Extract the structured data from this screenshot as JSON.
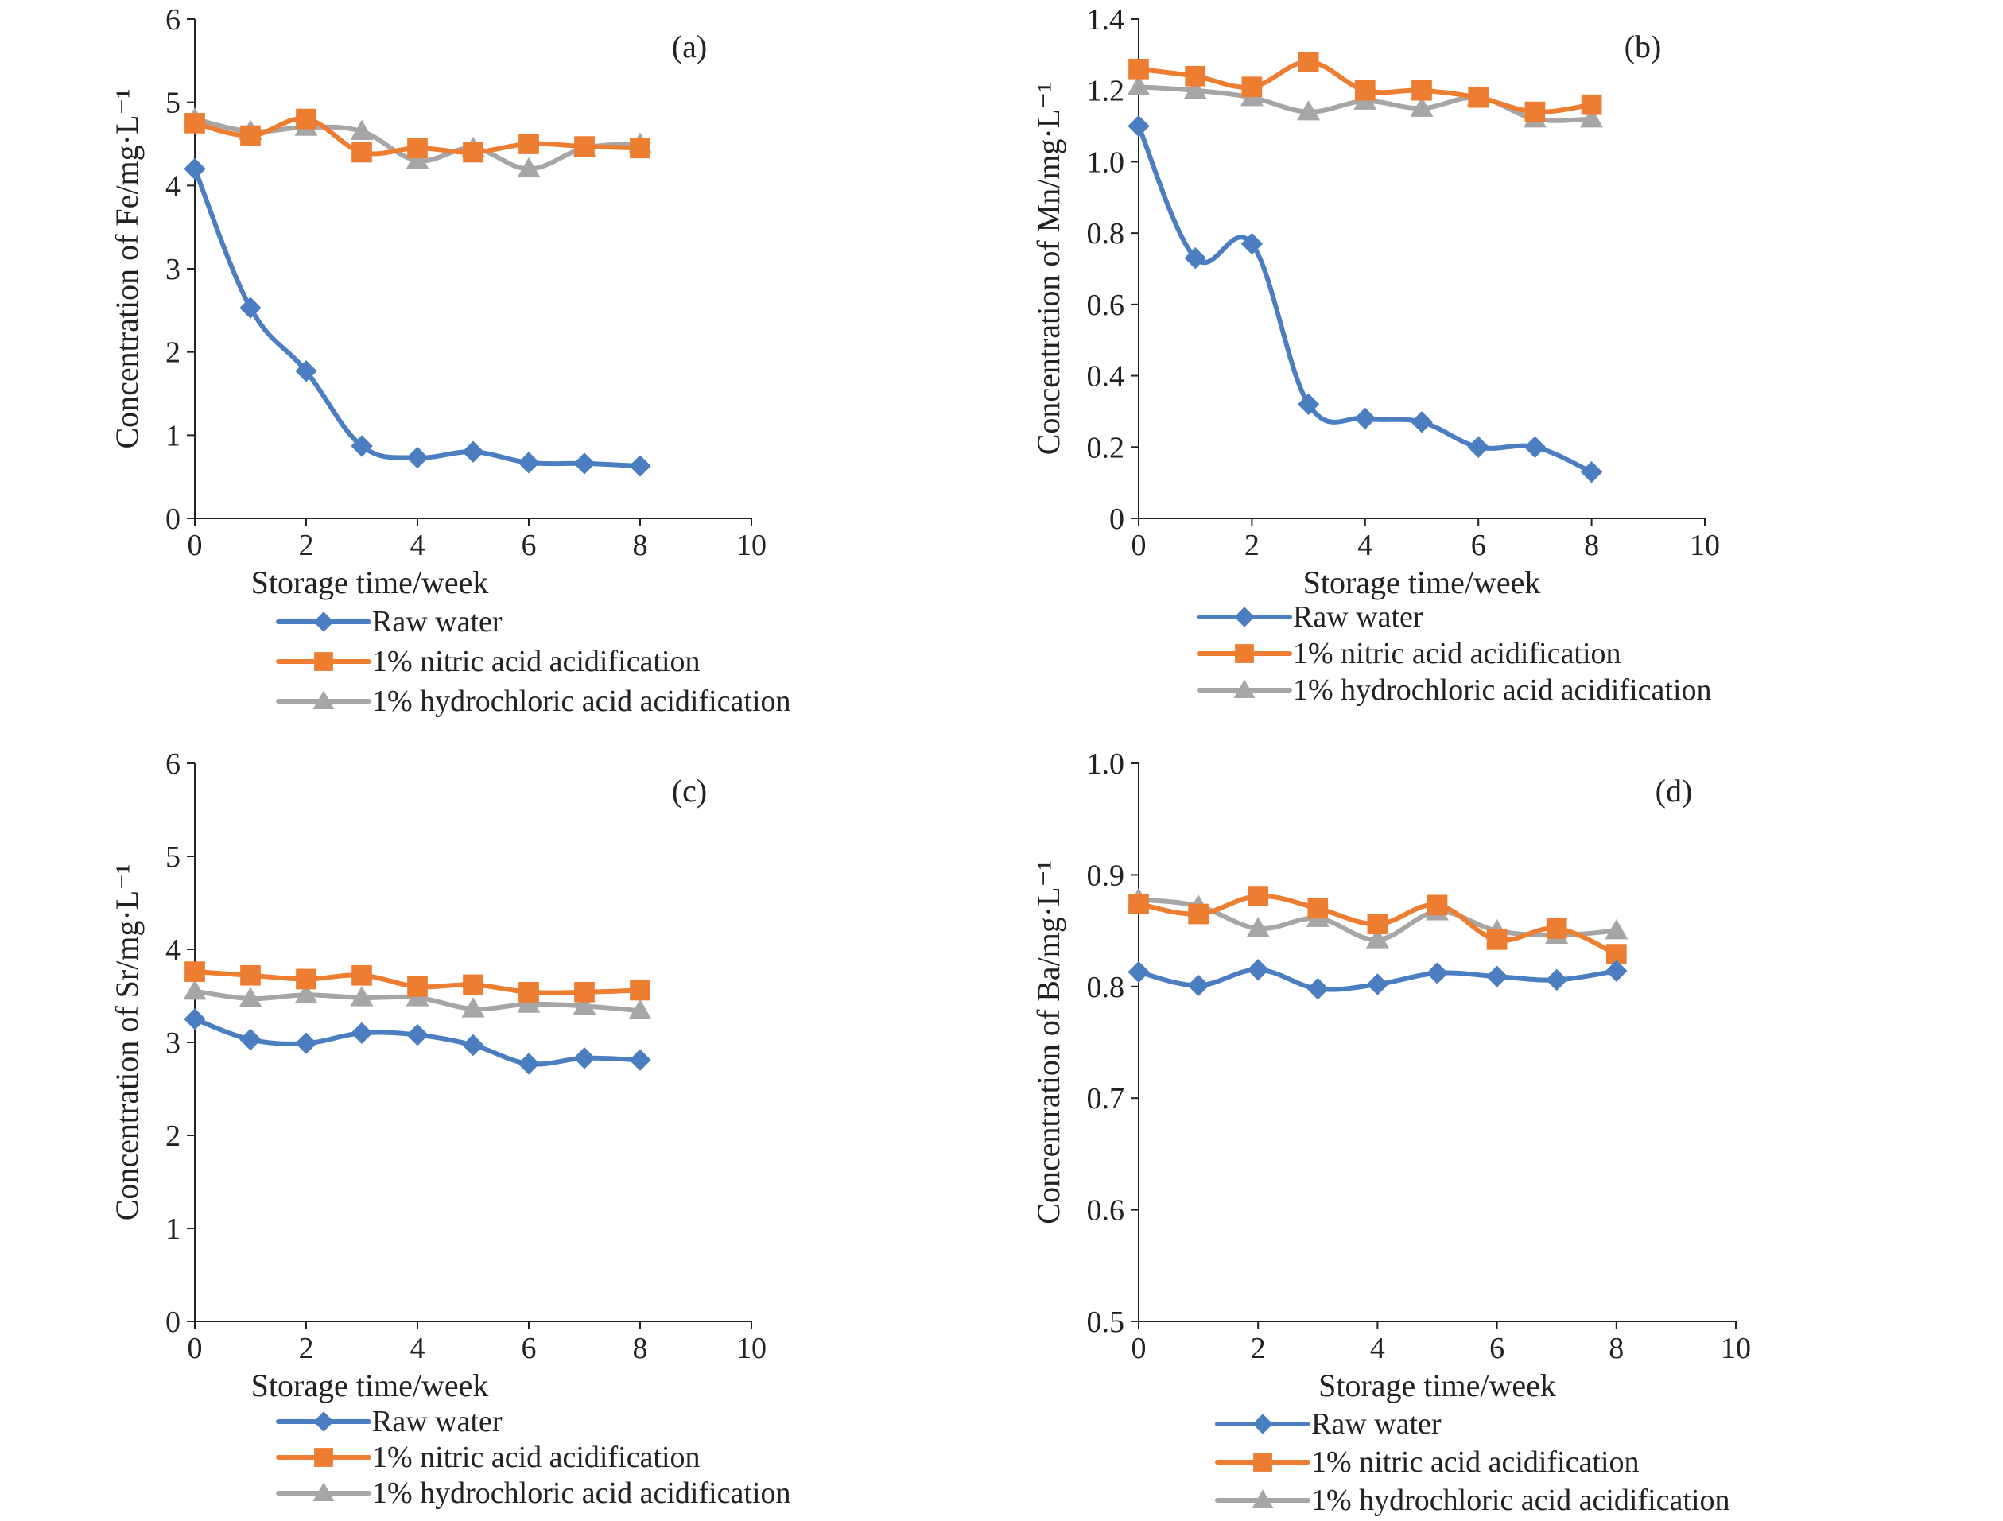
{
  "colors": {
    "raw": "#4a7ec0",
    "nitric": "#ed7d31",
    "hydrochloric": "#a6a6a6",
    "axis": "#222222"
  },
  "chart_data": [
    {
      "type": "line",
      "panel_label": "(a)",
      "xlabel": "Storage time/week",
      "ylabel": "Concentration of Fe/mg·L⁻¹",
      "xlim": [
        0,
        10
      ],
      "ylim": [
        0,
        6
      ],
      "x_ticks": [
        "0",
        "2",
        "4",
        "6",
        "8",
        "10"
      ],
      "y_ticks": [
        "0",
        "1",
        "2",
        "3",
        "4",
        "5",
        "6"
      ],
      "x": [
        0,
        1,
        2,
        3,
        4,
        5,
        6,
        7,
        8
      ],
      "legend_position": "bottom",
      "series": [
        {
          "name": "Raw water",
          "marker": "diamond",
          "values": [
            4.2,
            2.53,
            1.77,
            0.87,
            0.73,
            0.8,
            0.67,
            0.66,
            0.63
          ]
        },
        {
          "name": "1% nitric acid acidification",
          "marker": "square",
          "values": [
            4.75,
            4.6,
            4.8,
            4.4,
            4.45,
            4.4,
            4.5,
            4.47,
            4.45
          ]
        },
        {
          "name": "1% hydrochloric acid acidification",
          "marker": "triangle",
          "values": [
            4.8,
            4.65,
            4.7,
            4.65,
            4.3,
            4.45,
            4.2,
            4.45,
            4.5
          ]
        }
      ]
    },
    {
      "type": "line",
      "panel_label": "(b)",
      "xlabel": "Storage time/week",
      "ylabel": "Concentration of Mn/mg·L⁻¹",
      "xlim": [
        0,
        10
      ],
      "ylim": [
        0,
        1.4
      ],
      "x_ticks": [
        "0",
        "2",
        "4",
        "6",
        "8",
        "10"
      ],
      "y_ticks": [
        "0",
        "0.2",
        "0.4",
        "0.6",
        "0.8",
        "1.0",
        "1.2",
        "1.4"
      ],
      "x": [
        0,
        1,
        2,
        3,
        4,
        5,
        6,
        7,
        8
      ],
      "legend_position": "bottom",
      "series": [
        {
          "name": "Raw water",
          "marker": "diamond",
          "values": [
            1.1,
            0.73,
            0.77,
            0.32,
            0.28,
            0.27,
            0.2,
            0.2,
            0.13
          ]
        },
        {
          "name": "1% nitric acid acidification",
          "marker": "square",
          "values": [
            1.26,
            1.24,
            1.21,
            1.28,
            1.2,
            1.2,
            1.18,
            1.14,
            1.16
          ]
        },
        {
          "name": "1% hydrochloric acid acidification",
          "marker": "triangle",
          "values": [
            1.21,
            1.2,
            1.18,
            1.14,
            1.17,
            1.15,
            1.18,
            1.12,
            1.12
          ]
        }
      ]
    },
    {
      "type": "line",
      "panel_label": "(c)",
      "xlabel": "Storage time/week",
      "ylabel": "Concentration of Sr/mg·L⁻¹",
      "xlim": [
        0,
        10
      ],
      "ylim": [
        0,
        6
      ],
      "x_ticks": [
        "0",
        "2",
        "4",
        "6",
        "8",
        "10"
      ],
      "y_ticks": [
        "0",
        "1",
        "2",
        "3",
        "4",
        "5",
        "6"
      ],
      "x": [
        0,
        1,
        2,
        3,
        4,
        5,
        6,
        7,
        8
      ],
      "legend_position": "bottom",
      "series": [
        {
          "name": "Raw water",
          "marker": "diamond",
          "values": [
            3.25,
            3.03,
            2.99,
            3.1,
            3.08,
            2.97,
            2.77,
            2.83,
            2.81
          ]
        },
        {
          "name": "1% nitric acid acidification",
          "marker": "square",
          "values": [
            3.76,
            3.72,
            3.68,
            3.72,
            3.6,
            3.62,
            3.54,
            3.54,
            3.56
          ]
        },
        {
          "name": "1% hydrochloric acid acidification",
          "marker": "triangle",
          "values": [
            3.55,
            3.47,
            3.51,
            3.48,
            3.48,
            3.36,
            3.41,
            3.39,
            3.34
          ]
        }
      ]
    },
    {
      "type": "line",
      "panel_label": "(d)",
      "xlabel": "Storage time/week",
      "ylabel": "Concentration of Ba/mg·L⁻¹",
      "xlim": [
        0,
        10
      ],
      "ylim": [
        0.5,
        1.0
      ],
      "x_ticks": [
        "0",
        "2",
        "4",
        "6",
        "8",
        "10"
      ],
      "y_ticks": [
        "0.5",
        "0.6",
        "0.7",
        "0.8",
        "0.9",
        "1.0"
      ],
      "x": [
        0,
        1,
        2,
        3,
        4,
        5,
        6,
        7,
        8
      ],
      "legend_position": "bottom",
      "series": [
        {
          "name": "Raw water",
          "marker": "diamond",
          "values": [
            0.813,
            0.801,
            0.815,
            0.798,
            0.802,
            0.812,
            0.809,
            0.806,
            0.814
          ]
        },
        {
          "name": "1% nitric acid acidification",
          "marker": "square",
          "values": [
            0.874,
            0.865,
            0.881,
            0.87,
            0.856,
            0.873,
            0.842,
            0.852,
            0.829
          ]
        },
        {
          "name": "1% hydrochloric acid acidification",
          "marker": "triangle",
          "values": [
            0.878,
            0.872,
            0.852,
            0.861,
            0.842,
            0.867,
            0.85,
            0.846,
            0.85
          ]
        }
      ]
    }
  ]
}
